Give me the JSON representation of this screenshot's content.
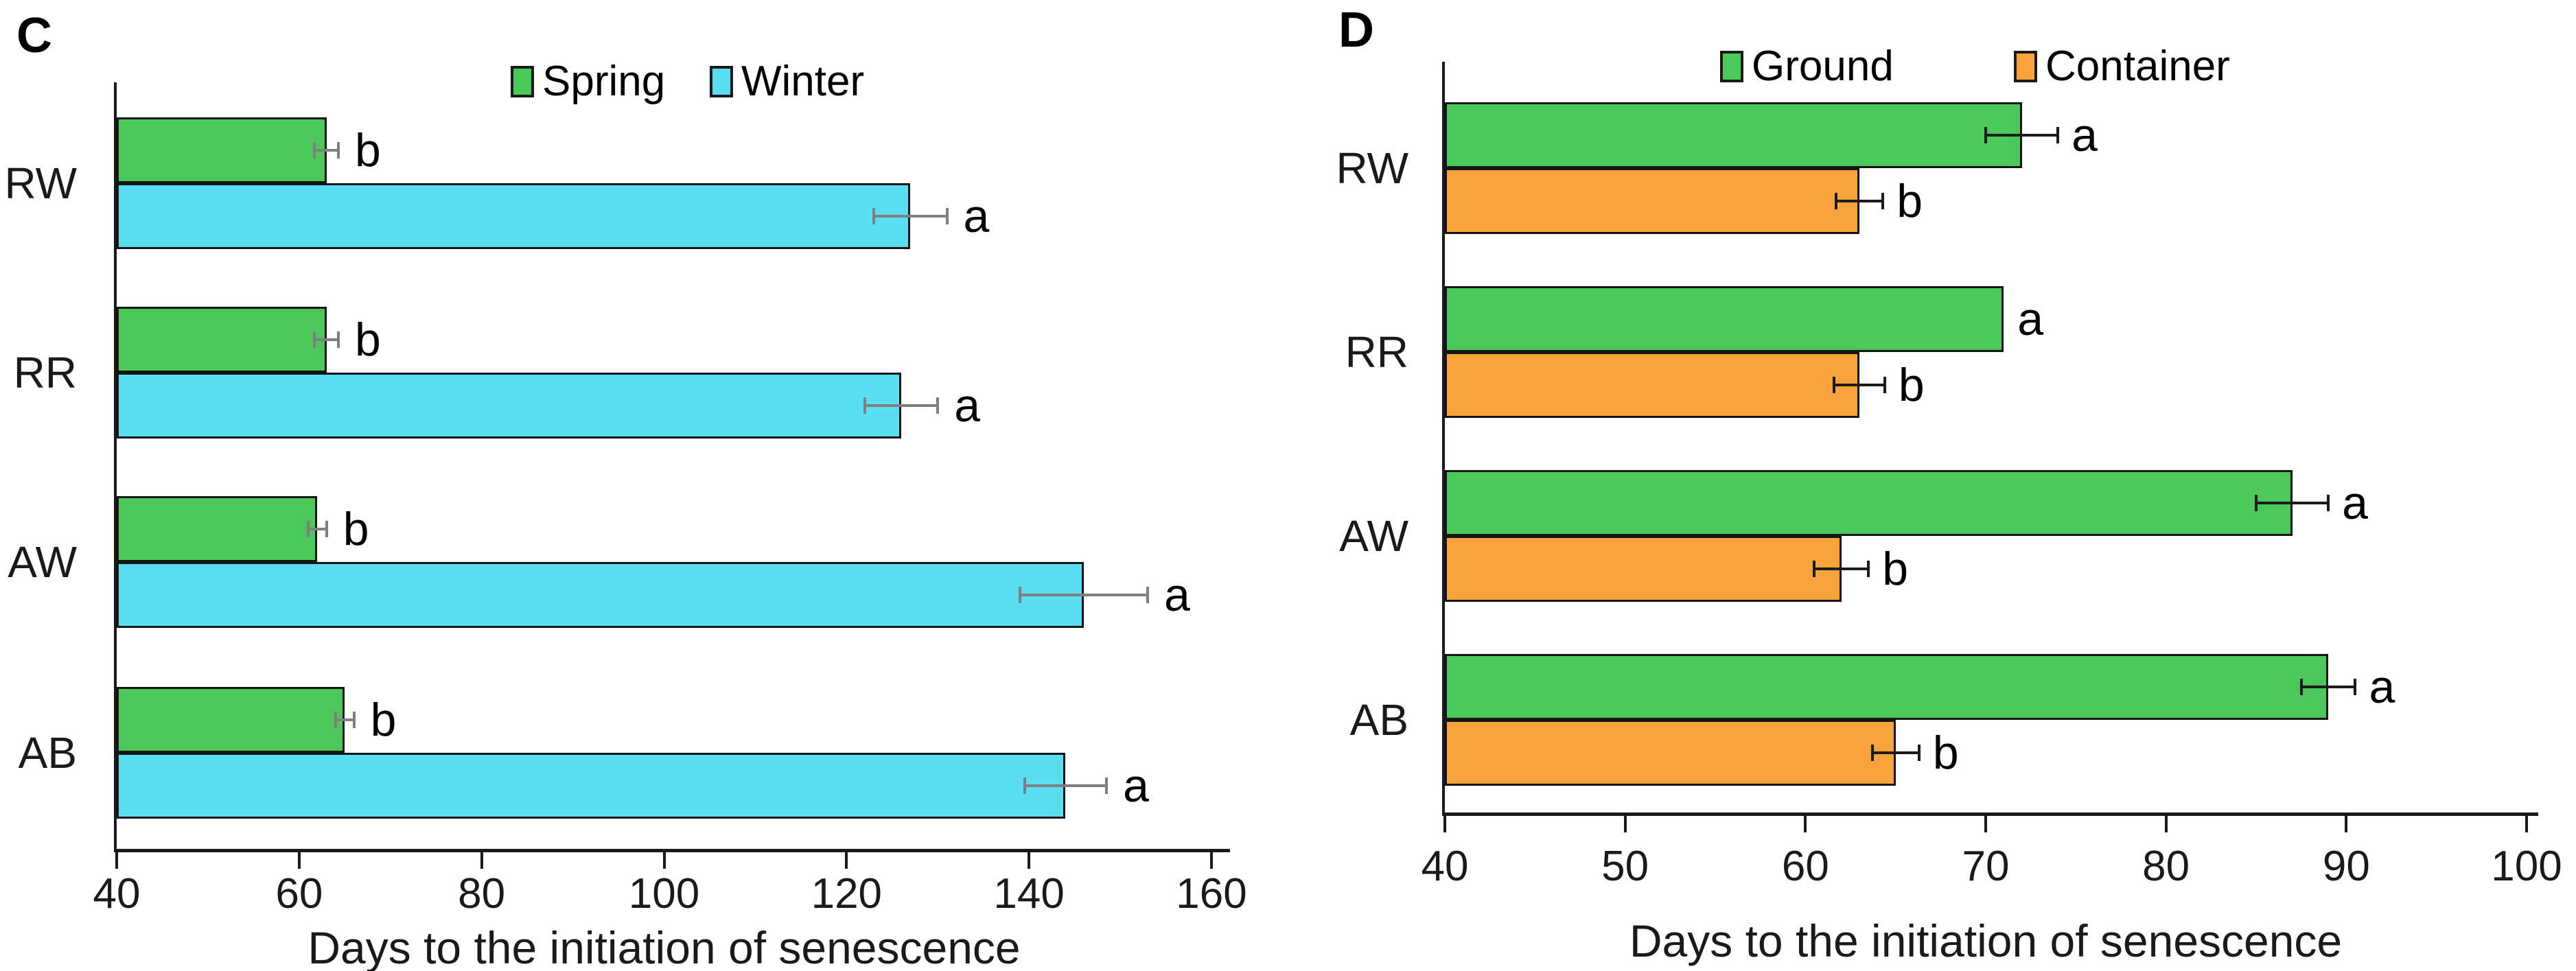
{
  "figure": {
    "background": "#ffffff",
    "text_color": "#000000",
    "axis_color": "#1a1a1a"
  },
  "chart_data": [
    {
      "type": "bar",
      "orientation": "horizontal",
      "panel_label": "C",
      "title": "",
      "xlabel": "Days to the initiation of senescence",
      "categories": [
        "RW",
        "RR",
        "AW",
        "AB"
      ],
      "series": [
        {
          "name": "Spring",
          "color": "#4AC85A",
          "values": [
            63,
            63,
            62,
            65
          ],
          "errors": [
            1.3,
            1.3,
            1.0,
            1.0
          ],
          "sig_labels": [
            "b",
            "b",
            "b",
            "b"
          ]
        },
        {
          "name": "Winter",
          "color": "#5ADEF1",
          "values": [
            127,
            126,
            146,
            144
          ],
          "errors": [
            4.0,
            4.0,
            7.0,
            4.5
          ],
          "sig_labels": [
            "a",
            "a",
            "a",
            "a"
          ]
        }
      ],
      "xlim": [
        40,
        160
      ],
      "xticks": [
        40,
        60,
        80,
        100,
        120,
        140,
        160
      ],
      "grid": false,
      "legend_position": "top",
      "error_bar_color": "#7f7f7f",
      "bar_border_color": "#141414"
    },
    {
      "type": "bar",
      "orientation": "horizontal",
      "panel_label": "D",
      "title": "",
      "xlabel": "Days to the initiation of senescence",
      "categories": [
        "RW",
        "RR",
        "AW",
        "AB"
      ],
      "series": [
        {
          "name": "Ground",
          "color": "#4AC85A",
          "values": [
            72,
            71,
            87,
            89
          ],
          "errors": [
            2.0,
            0,
            2.0,
            1.5
          ],
          "sig_labels": [
            "a",
            "a",
            "a",
            "a"
          ]
        },
        {
          "name": "Container",
          "color": "#F8A33C",
          "values": [
            63,
            63,
            62,
            65
          ],
          "errors": [
            1.3,
            1.4,
            1.5,
            1.3
          ],
          "sig_labels": [
            "b",
            "b",
            "b",
            "b"
          ]
        }
      ],
      "xlim": [
        40,
        100
      ],
      "xticks": [
        40,
        50,
        60,
        70,
        80,
        90,
        100
      ],
      "grid": false,
      "legend_position": "top",
      "error_bar_color": "#1a1a1a",
      "bar_border_color": "#141414"
    }
  ]
}
